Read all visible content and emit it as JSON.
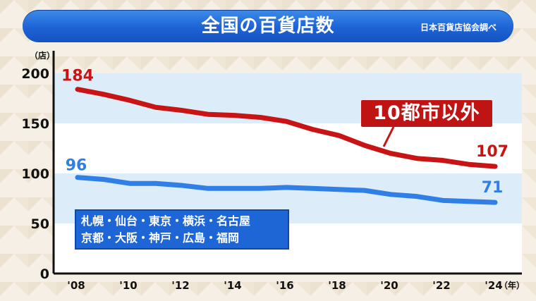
{
  "header": {
    "title": "全国の百貨店数",
    "source": "日本百貨店協会調べ"
  },
  "units": {
    "y": "（店）",
    "x": "（年）"
  },
  "labels": {
    "callout": "10都市以外",
    "cities_line1": "札幌・仙台・東京・横浜・名古屋",
    "cities_line2": "京都・大阪・神戸・広島・福岡"
  },
  "colors": {
    "other": "#c81414",
    "ten_cities": "#2f7fe6",
    "band": "#dcecf8",
    "title_bar": "#1d63d6"
  },
  "chart_data": {
    "type": "line",
    "title": "全国の百貨店数",
    "x": [
      2008,
      2009,
      2010,
      2011,
      2012,
      2013,
      2014,
      2015,
      2016,
      2017,
      2018,
      2019,
      2020,
      2021,
      2022,
      2023,
      2024
    ],
    "x_ticks": [
      "'08",
      "'10",
      "'12",
      "'14",
      "'16",
      "'18",
      "'20",
      "'22",
      "'24"
    ],
    "y_ticks": [
      0,
      50,
      100,
      150,
      200
    ],
    "ylim": [
      0,
      200
    ],
    "grid": false,
    "series": [
      {
        "name": "10都市以外",
        "values": [
          184,
          179,
          173,
          166,
          163,
          159,
          158,
          156,
          152,
          144,
          138,
          128,
          120,
          115,
          113,
          109,
          107
        ]
      },
      {
        "name": "札幌・仙台・東京・横浜・名古屋・京都・大阪・神戸・広島・福岡",
        "values": [
          96,
          94,
          90,
          90,
          88,
          85,
          85,
          85,
          86,
          85,
          84,
          83,
          79,
          77,
          73,
          72,
          71
        ]
      }
    ],
    "data_labels": {
      "first_other": "184",
      "last_other": "107",
      "first_ten": "96",
      "last_ten": "71"
    }
  }
}
